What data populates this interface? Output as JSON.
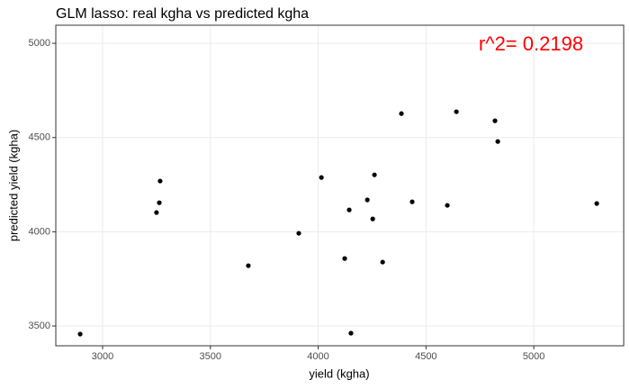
{
  "chart_data": {
    "type": "scatter",
    "title": "GLM lasso: real kgha vs predicted kgha",
    "x_label": "yield (kgha)",
    "y_label": "predicted yield (kgha)",
    "annotation": "r^2= 0.2198",
    "annotation_color": "#ff0000",
    "x": [
      2896,
      3250,
      3263,
      3267,
      3676,
      3910,
      4015,
      4123,
      4144,
      4152,
      4228,
      4253,
      4261,
      4299,
      4386,
      4436,
      4599,
      4641,
      4820,
      4833,
      5292
    ],
    "values": [
      3457,
      4102,
      4154,
      4269,
      3820,
      3992,
      4288,
      3858,
      4116,
      3462,
      4169,
      4068,
      4302,
      3839,
      4627,
      4159,
      4140,
      4637,
      4589,
      4479,
      4150
    ],
    "color": "#000000",
    "xlim": [
      2783,
      5417
    ],
    "ylim": [
      3395,
      5096
    ],
    "xticks": [
      3000,
      3500,
      4000,
      4500,
      5000
    ],
    "yticks": [
      3500,
      4000,
      4500,
      5000
    ],
    "grid": true
  }
}
